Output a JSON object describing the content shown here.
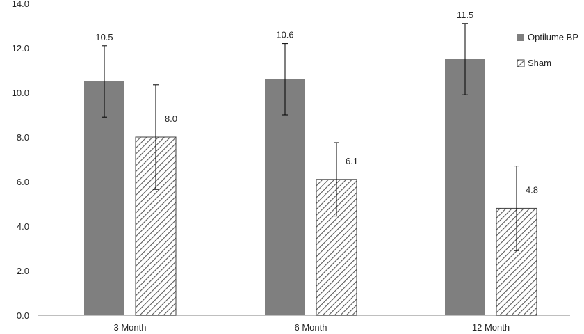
{
  "chart_data": {
    "type": "bar",
    "title": "",
    "xlabel": "",
    "ylabel": "",
    "ylim": [
      0,
      14
    ],
    "ytick_step": 2,
    "ytick_labels": [
      "0.0",
      "2.0",
      "4.0",
      "6.0",
      "8.0",
      "10.0",
      "12.0",
      "14.0"
    ],
    "grid": false,
    "legend_position": "top-right",
    "categories": [
      "3 Month",
      "6 Month",
      "12 Month"
    ],
    "series": [
      {
        "name": "Optilume BP",
        "pattern": "solid",
        "color": "#7f7f7f",
        "values": [
          10.5,
          10.6,
          11.5
        ],
        "error": [
          1.6,
          1.6,
          1.6
        ],
        "labels": [
          "10.5",
          "10.6",
          "11.5"
        ]
      },
      {
        "name": "Sham",
        "pattern": "diagonal-hatch",
        "color": "#595959",
        "values": [
          8.0,
          6.1,
          4.8
        ],
        "error": [
          2.35,
          1.65,
          1.9
        ],
        "labels": [
          "8.0",
          "6.1",
          "4.8"
        ]
      }
    ]
  }
}
